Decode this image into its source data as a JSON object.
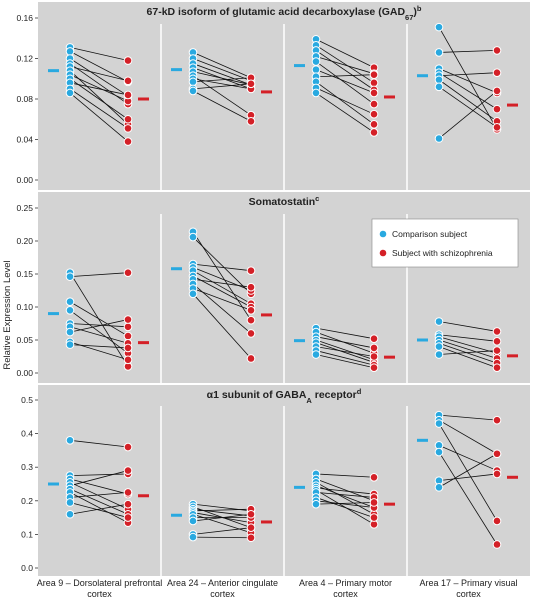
{
  "y_axis_label": "Relative Expression Level",
  "colors": {
    "panel_bg": "#d3d3d3",
    "comparison": "#29a9e0",
    "schizophrenia": "#d42027",
    "line": "#111111",
    "divider": "#ffffff"
  },
  "legend": {
    "comparison": "Comparison subject",
    "schizophrenia": "Subject with schizophrenia"
  },
  "chart_data": [
    {
      "type": "scatter",
      "title_main": "67-kD isoform of glutamic acid decarboxylase (GAD",
      "title_sub": "67",
      "title_after": ")",
      "title_sup": "b",
      "ylabel": "Relative Expression Level",
      "ylim": [
        0,
        0.16
      ],
      "yticks": [
        0,
        0.04,
        0.08,
        0.12,
        0.16
      ],
      "tick_labels": [
        "0.00",
        "0.04",
        "0.08",
        "0.12",
        "0.16"
      ],
      "categories": [
        "Area 9 – Dorsolateral prefrontal cortex",
        "Area 24 – Anterior cingulate cortex",
        "Area 4 – Primary motor cortex",
        "Area 17 – Primary visual cortex"
      ],
      "groups": [
        {
          "pairs": [
            [
              0.131,
              0.118
            ],
            [
              0.127,
              0.097
            ],
            [
              0.12,
              0.083
            ],
            [
              0.115,
              0.075
            ],
            [
              0.112,
              0.098
            ],
            [
              0.108,
              0.055
            ],
            [
              0.104,
              0.078
            ],
            [
              0.1,
              0.06
            ],
            [
              0.096,
              0.084
            ],
            [
              0.09,
              0.051
            ],
            [
              0.086,
              0.038
            ]
          ],
          "comparison_mean": 0.108,
          "schizophrenia_mean": 0.08
        },
        {
          "pairs": [
            [
              0.126,
              0.101
            ],
            [
              0.12,
              0.098
            ],
            [
              0.115,
              0.094
            ],
            [
              0.111,
              0.09
            ],
            [
              0.107,
              0.094
            ],
            [
              0.103,
              0.064
            ],
            [
              0.1,
              0.09
            ],
            [
              0.097,
              0.101
            ],
            [
              0.09,
              0.095
            ],
            [
              0.088,
              0.058
            ]
          ],
          "comparison_mean": 0.109,
          "schizophrenia_mean": 0.087
        },
        {
          "pairs": [
            [
              0.139,
              0.111
            ],
            [
              0.133,
              0.096
            ],
            [
              0.128,
              0.089
            ],
            [
              0.122,
              0.105
            ],
            [
              0.117,
              0.075
            ],
            [
              0.109,
              0.086
            ],
            [
              0.102,
              0.104
            ],
            [
              0.097,
              0.055
            ],
            [
              0.091,
              0.065
            ],
            [
              0.086,
              0.047
            ]
          ],
          "comparison_mean": 0.113,
          "schizophrenia_mean": 0.082
        },
        {
          "pairs": [
            [
              0.151,
              0.05
            ],
            [
              0.126,
              0.128
            ],
            [
              0.11,
              0.086
            ],
            [
              0.106,
              0.07
            ],
            [
              0.103,
              0.106
            ],
            [
              0.099,
              0.058
            ],
            [
              0.092,
              0.052
            ],
            [
              0.041,
              0.088
            ]
          ],
          "comparison_mean": 0.103,
          "schizophrenia_mean": 0.074
        }
      ]
    },
    {
      "type": "scatter",
      "title_main": "Somatostatin",
      "title_sub": "",
      "title_after": "",
      "title_sup": "c",
      "ylabel": "Relative Expression Level",
      "ylim": [
        0,
        0.25
      ],
      "yticks": [
        0,
        0.05,
        0.1,
        0.15,
        0.2,
        0.25
      ],
      "tick_labels": [
        "0.00",
        "0.05",
        "0.10",
        "0.15",
        "0.20",
        "0.25"
      ],
      "categories": [
        "Area 9 – Dorsolateral prefrontal cortex",
        "Area 24 – Anterior cingulate cortex",
        "Area 4 – Primary motor cortex",
        "Area 17 – Primary visual cortex"
      ],
      "groups": [
        {
          "pairs": [
            [
              0.152,
              0.01
            ],
            [
              0.146,
              0.152
            ],
            [
              0.108,
              0.056
            ],
            [
              0.095,
              0.03
            ],
            [
              0.075,
              0.07
            ],
            [
              0.07,
              0.045
            ],
            [
              0.062,
              0.081
            ],
            [
              0.047,
              0.02
            ],
            [
              0.043,
              0.038
            ]
          ],
          "comparison_mean": 0.09,
          "schizophrenia_mean": 0.046
        },
        {
          "pairs": [
            [
              0.214,
              0.08
            ],
            [
              0.206,
              0.12
            ],
            [
              0.165,
              0.155
            ],
            [
              0.16,
              0.125
            ],
            [
              0.155,
              0.105
            ],
            [
              0.147,
              0.1
            ],
            [
              0.142,
              0.13
            ],
            [
              0.135,
              0.06
            ],
            [
              0.128,
              0.095
            ],
            [
              0.12,
              0.022
            ]
          ],
          "comparison_mean": 0.158,
          "schizophrenia_mean": 0.088
        },
        {
          "pairs": [
            [
              0.068,
              0.052
            ],
            [
              0.062,
              0.03
            ],
            [
              0.055,
              0.038
            ],
            [
              0.05,
              0.02
            ],
            [
              0.046,
              0.016
            ],
            [
              0.04,
              0.025
            ],
            [
              0.034,
              0.012
            ],
            [
              0.028,
              0.008
            ]
          ],
          "comparison_mean": 0.049,
          "schizophrenia_mean": 0.024
        },
        {
          "pairs": [
            [
              0.078,
              0.063
            ],
            [
              0.058,
              0.048
            ],
            [
              0.055,
              0.03
            ],
            [
              0.05,
              0.022
            ],
            [
              0.045,
              0.015
            ],
            [
              0.04,
              0.008
            ],
            [
              0.028,
              0.034
            ]
          ],
          "comparison_mean": 0.05,
          "schizophrenia_mean": 0.026
        }
      ]
    },
    {
      "type": "scatter",
      "title_main": "α1 subunit of GABA",
      "title_sub": "A",
      "title_after": " receptor",
      "title_sup": "d",
      "ylabel": "Relative Expression Level",
      "ylim": [
        0,
        0.5
      ],
      "yticks": [
        0,
        0.1,
        0.2,
        0.3,
        0.4,
        0.5
      ],
      "tick_labels": [
        "0.0",
        "0.1",
        "0.2",
        "0.3",
        "0.4",
        "0.5"
      ],
      "categories": [
        "Area 9 – Dorsolateral prefrontal cortex",
        "Area 24 – Anterior cingulate cortex",
        "Area 4 – Primary motor cortex",
        "Area 17 – Primary visual cortex"
      ],
      "groups": [
        {
          "pairs": [
            [
              0.38,
              0.36
            ],
            [
              0.275,
              0.28
            ],
            [
              0.265,
              0.22
            ],
            [
              0.255,
              0.175
            ],
            [
              0.245,
              0.29
            ],
            [
              0.235,
              0.16
            ],
            [
              0.225,
              0.135
            ],
            [
              0.21,
              0.225
            ],
            [
              0.195,
              0.15
            ],
            [
              0.16,
              0.19
            ]
          ],
          "comparison_mean": 0.25,
          "schizophrenia_mean": 0.215
        },
        {
          "pairs": [
            [
              0.19,
              0.17
            ],
            [
              0.182,
              0.12
            ],
            [
              0.175,
              0.155
            ],
            [
              0.17,
              0.175
            ],
            [
              0.165,
              0.135
            ],
            [
              0.16,
              0.105
            ],
            [
              0.15,
              0.15
            ],
            [
              0.14,
              0.16
            ],
            [
              0.1,
              0.12
            ],
            [
              0.092,
              0.09
            ]
          ],
          "comparison_mean": 0.157,
          "schizophrenia_mean": 0.137
        },
        {
          "pairs": [
            [
              0.28,
              0.27
            ],
            [
              0.265,
              0.2
            ],
            [
              0.255,
              0.16
            ],
            [
              0.245,
              0.18
            ],
            [
              0.238,
              0.22
            ],
            [
              0.232,
              0.13
            ],
            [
              0.225,
              0.21
            ],
            [
              0.21,
              0.15
            ],
            [
              0.2,
              0.18
            ],
            [
              0.19,
              0.195
            ]
          ],
          "comparison_mean": 0.24,
          "schizophrenia_mean": 0.19
        },
        {
          "pairs": [
            [
              0.455,
              0.44
            ],
            [
              0.44,
              0.34
            ],
            [
              0.43,
              0.14
            ],
            [
              0.365,
              0.29
            ],
            [
              0.345,
              0.07
            ],
            [
              0.26,
              0.28
            ],
            [
              0.24,
              0.34
            ]
          ],
          "comparison_mean": 0.38,
          "schizophrenia_mean": 0.27
        }
      ]
    }
  ]
}
